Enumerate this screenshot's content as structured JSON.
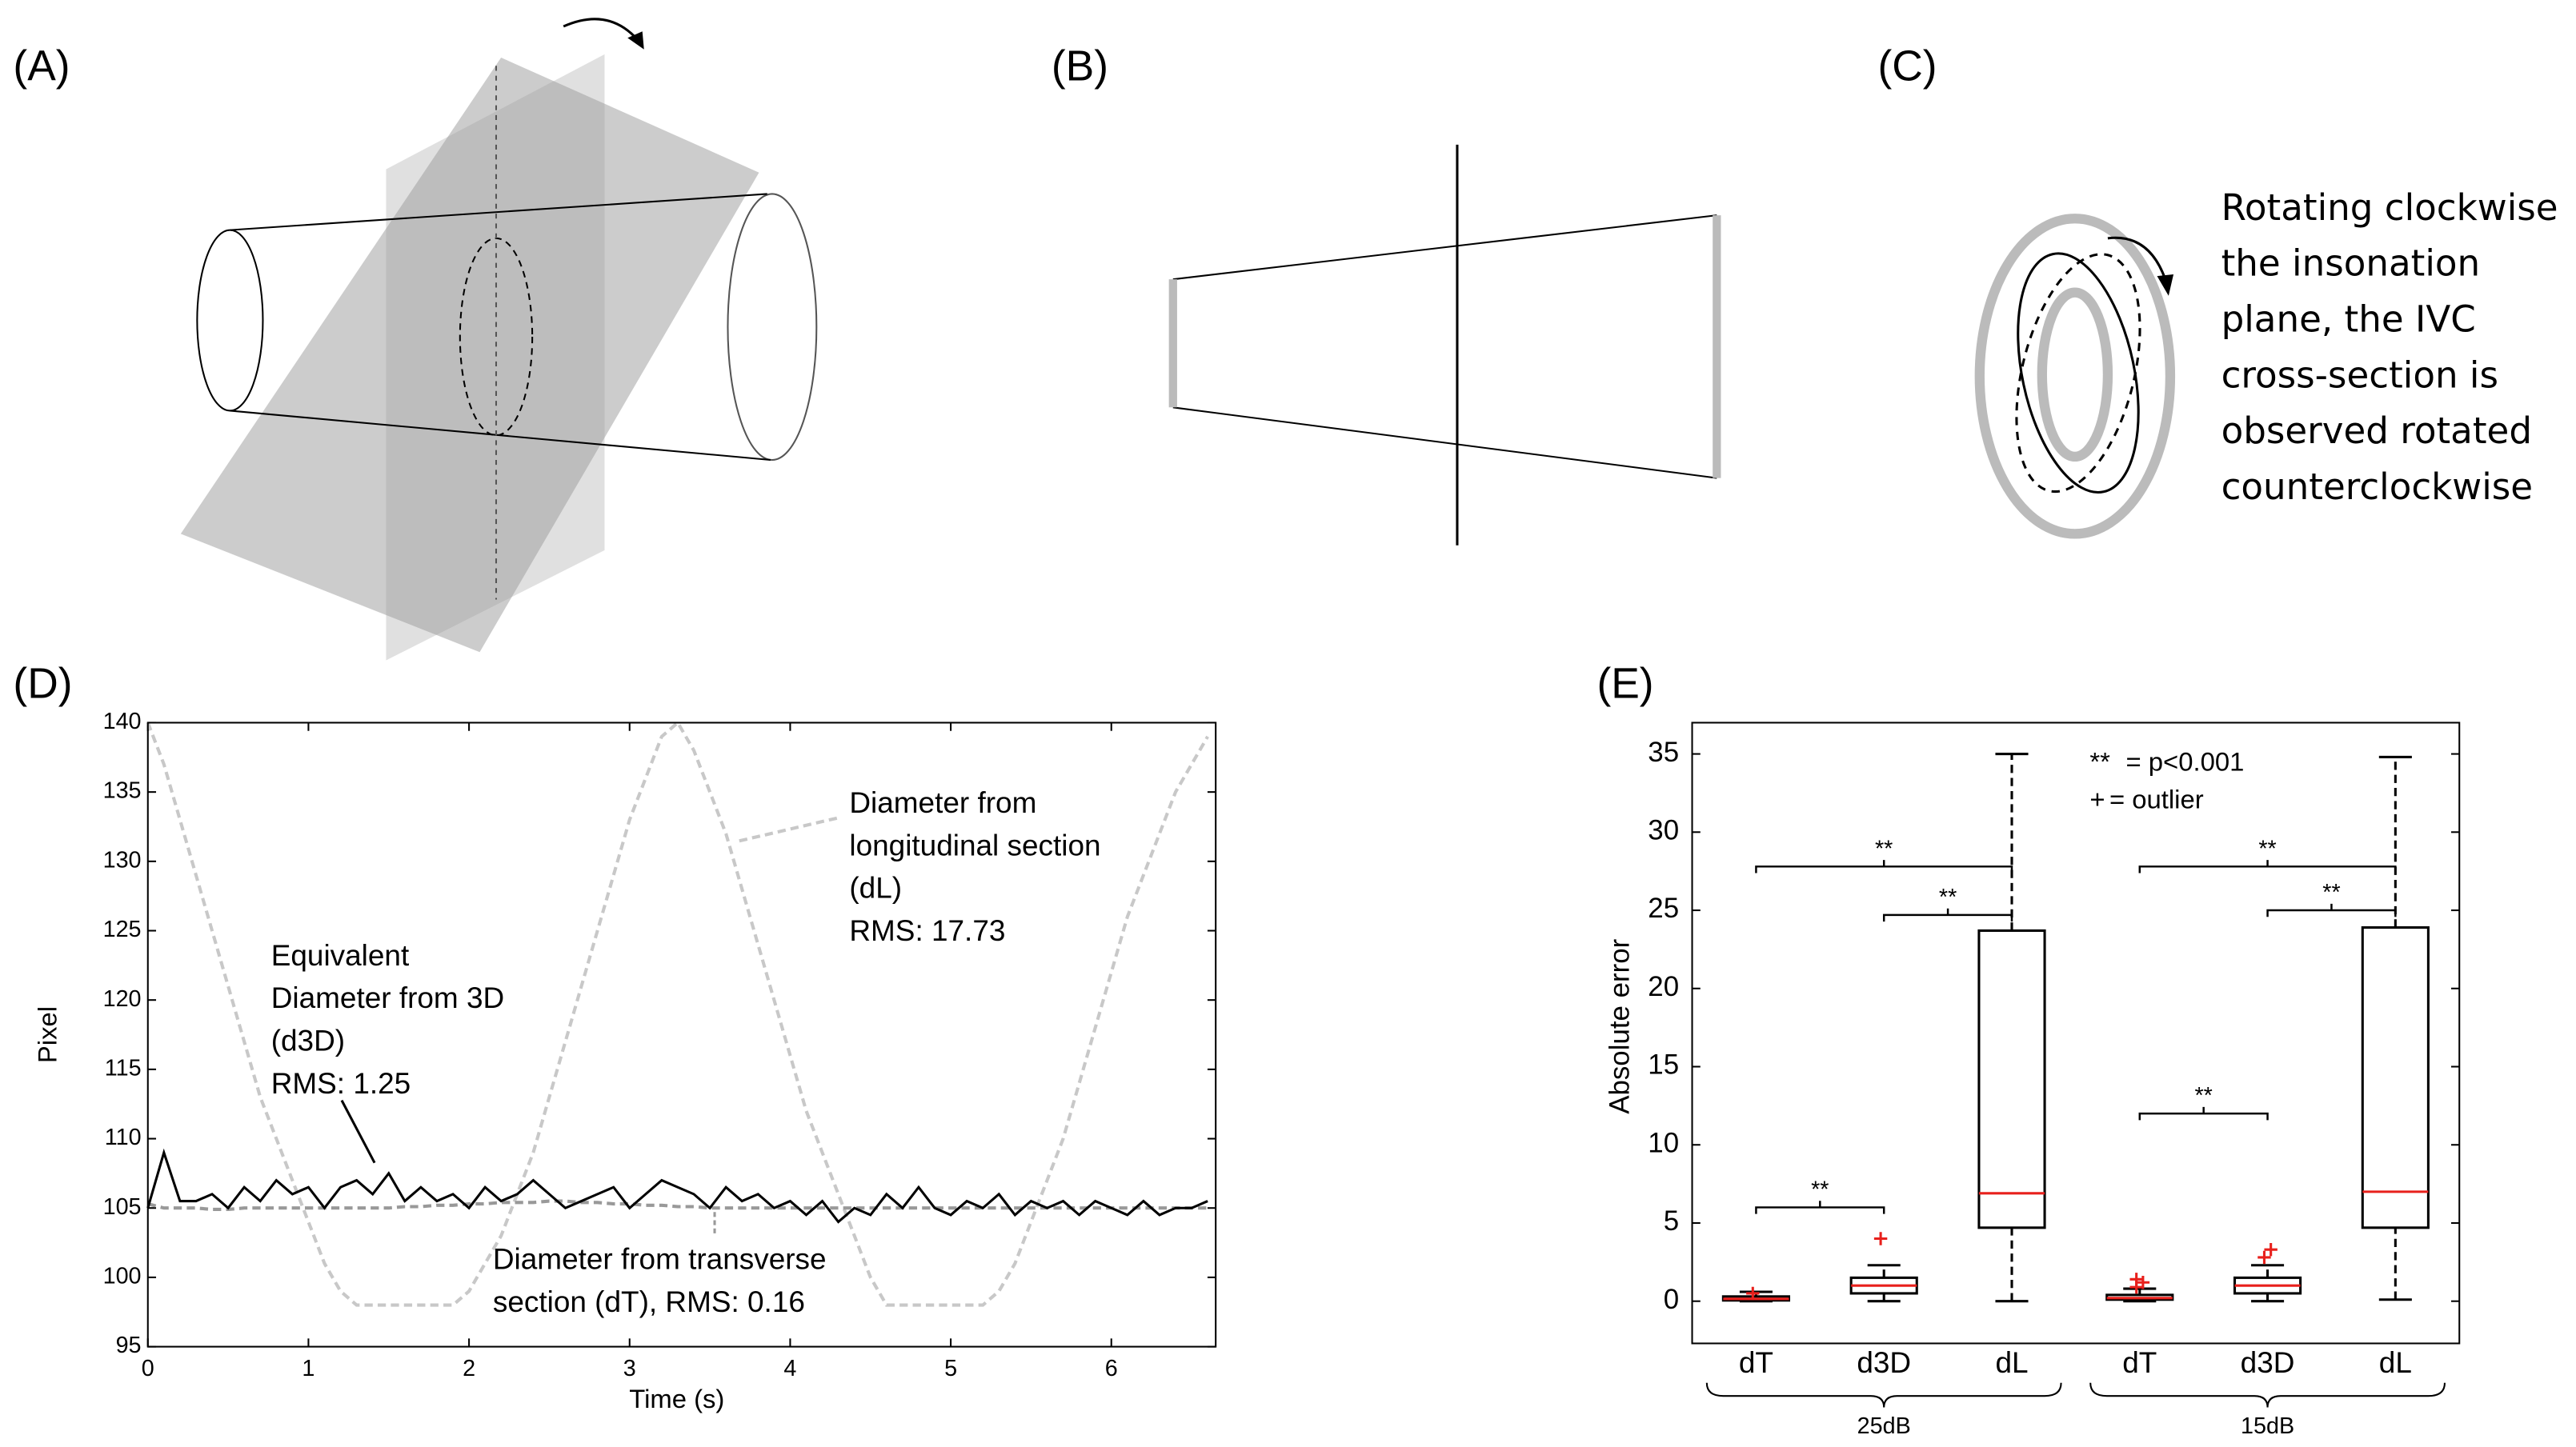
{
  "panel_labels": [
    "(A)",
    "(B)",
    "(C)",
    "(D)",
    "(E)"
  ],
  "panel_c_text": [
    "Rotating clockwise",
    "the insonation",
    "plane, the IVC",
    "cross-section is",
    "observed rotated",
    "counterclockwise"
  ],
  "chart_data": [
    {
      "type": "line",
      "x_label": "Time (s)",
      "y_label": "Pixel",
      "xlim": [
        0,
        6.65
      ],
      "xticks": [
        0,
        1,
        2,
        3,
        4,
        5,
        6
      ],
      "ylim": [
        95,
        140
      ],
      "yticks": [
        95,
        100,
        105,
        110,
        115,
        120,
        125,
        130,
        135,
        140
      ],
      "x": [
        0,
        0.1,
        0.2,
        0.3,
        0.4,
        0.5,
        0.6,
        0.7,
        0.8,
        0.9,
        1,
        1.1,
        1.2,
        1.3,
        1.4,
        1.5,
        1.6,
        1.7,
        1.8,
        1.9,
        2,
        2.1,
        2.2,
        2.3,
        2.4,
        2.5,
        2.6,
        2.7,
        2.8,
        2.9,
        3,
        3.1,
        3.2,
        3.3,
        3.4,
        3.5,
        3.6,
        3.7,
        3.8,
        3.9,
        4,
        4.1,
        4.2,
        4.3,
        4.4,
        4.5,
        4.6,
        4.7,
        4.8,
        4.9,
        5,
        5.1,
        5.2,
        5.3,
        5.4,
        5.5,
        5.6,
        5.7,
        5.8,
        5.9,
        6,
        6.1,
        6.2,
        6.3,
        6.4,
        6.5,
        6.6
      ],
      "series": [
        {
          "color": "#c8c8c8",
          "line_style": "dashed",
          "values": [
            140,
            137,
            133,
            129,
            125,
            121,
            117,
            113,
            110,
            107,
            104,
            101,
            99,
            98,
            98,
            98,
            98,
            98,
            98,
            98,
            99,
            101,
            103,
            106,
            109,
            113,
            117,
            121,
            125,
            129,
            133,
            136,
            139,
            140,
            138,
            135,
            132,
            128,
            124,
            120,
            116,
            112,
            109,
            106,
            103,
            100,
            98,
            98,
            98,
            98,
            98,
            98,
            98,
            99,
            101,
            104,
            107,
            110,
            114,
            118,
            122,
            126,
            129,
            132,
            135,
            137,
            139
          ]
        },
        {
          "color": "#999999",
          "line_style": "dashed",
          "values": [
            105.3,
            105,
            105,
            105,
            104.9,
            104.9,
            105,
            105,
            105,
            105,
            105,
            105,
            105,
            105,
            105,
            105,
            105.1,
            105.1,
            105.2,
            105.2,
            105.3,
            105.3,
            105.4,
            105.4,
            105.4,
            105.5,
            105.5,
            105.4,
            105.4,
            105.3,
            105.3,
            105.2,
            105.2,
            105.1,
            105.1,
            105,
            105,
            105,
            105,
            105,
            105,
            105,
            105,
            105,
            105,
            105,
            105,
            105,
            105,
            105,
            105,
            105,
            105,
            105,
            105,
            105,
            105,
            105,
            105,
            105,
            105,
            105,
            105,
            105,
            105,
            105,
            105
          ]
        },
        {
          "color": "#000000",
          "line_style": "solid",
          "values": [
            105,
            109,
            105.5,
            105.5,
            106,
            105,
            106.5,
            105.5,
            107,
            106,
            106.5,
            105,
            106.5,
            107,
            106,
            107.5,
            105.5,
            106.5,
            105.5,
            106,
            105,
            106.5,
            105.5,
            106,
            107,
            106,
            105,
            105.5,
            106,
            106.5,
            105,
            106,
            107,
            106.5,
            106,
            105,
            106.5,
            105.5,
            106,
            105,
            105.5,
            104.5,
            105.5,
            104,
            105,
            104.5,
            106,
            105,
            106.5,
            105,
            104.5,
            105.5,
            105,
            106,
            104.5,
            105.5,
            105,
            105.5,
            104.5,
            105.5,
            105,
            104.5,
            105.5,
            104.5,
            105,
            105,
            105.5
          ]
        }
      ],
      "annotations": [
        {
          "lines": [
            "Diameter from",
            "longitudinal section",
            "(dL)",
            "RMS: 17.73"
          ]
        },
        {
          "lines": [
            "Equivalent",
            "Diameter from 3D",
            "(d3D)",
            "RMS: 1.25"
          ]
        },
        {
          "lines": [
            "Diameter from transverse",
            "section (dT), RMS: 0.16"
          ]
        }
      ]
    },
    {
      "type": "box",
      "y_label": "Absolute error",
      "ylim": [
        -2.7,
        37
      ],
      "yticks": [
        0,
        5,
        10,
        15,
        20,
        25,
        30,
        35
      ],
      "categories": [
        "dT",
        "d3D",
        "dL",
        "dT",
        "d3D",
        "dL"
      ],
      "groups": [
        {
          "label": "25dB",
          "from": 0,
          "to": 2
        },
        {
          "label": "15dB",
          "from": 3,
          "to": 5
        }
      ],
      "box_color": "#000000",
      "median_color": "#e8201c",
      "outlier_color": "#e8201c",
      "boxes": [
        {
          "min": 0,
          "q1": 0.05,
          "median": 0.15,
          "q3": 0.3,
          "max": 0.6,
          "outliers": [
            0.5
          ]
        },
        {
          "min": 0,
          "q1": 0.5,
          "median": 1.0,
          "q3": 1.5,
          "max": 2.3,
          "outliers": [
            4
          ]
        },
        {
          "min": 0,
          "q1": 4.7,
          "median": 6.9,
          "q3": 23.7,
          "max": 35,
          "outliers": []
        },
        {
          "min": 0,
          "q1": 0.1,
          "median": 0.2,
          "q3": 0.4,
          "max": 0.8,
          "outliers": [
            0.9,
            1.2,
            1.4
          ]
        },
        {
          "min": 0,
          "q1": 0.5,
          "median": 1.0,
          "q3": 1.5,
          "max": 2.3,
          "outliers": [
            2.8,
            3.3
          ]
        },
        {
          "min": 0.1,
          "q1": 4.7,
          "median": 7.0,
          "q3": 23.9,
          "max": 34.8,
          "outliers": []
        }
      ],
      "brackets": [
        {
          "from": 0,
          "to": 2,
          "y": 27.8,
          "label": "**"
        },
        {
          "from": 1,
          "to": 2,
          "y": 24.7,
          "label": "**"
        },
        {
          "from": 3,
          "to": 5,
          "y": 27.8,
          "label": "**"
        },
        {
          "from": 4,
          "to": 5,
          "y": 25,
          "label": "**"
        },
        {
          "from": 0,
          "to": 1,
          "y": 6,
          "label": "**"
        },
        {
          "from": 3,
          "to": 4,
          "y": 12,
          "label": "**"
        }
      ],
      "legend": [
        {
          "symbol": "**",
          "text": "= p<0.001"
        },
        {
          "symbol": "+",
          "text": "= outlier"
        }
      ]
    }
  ]
}
